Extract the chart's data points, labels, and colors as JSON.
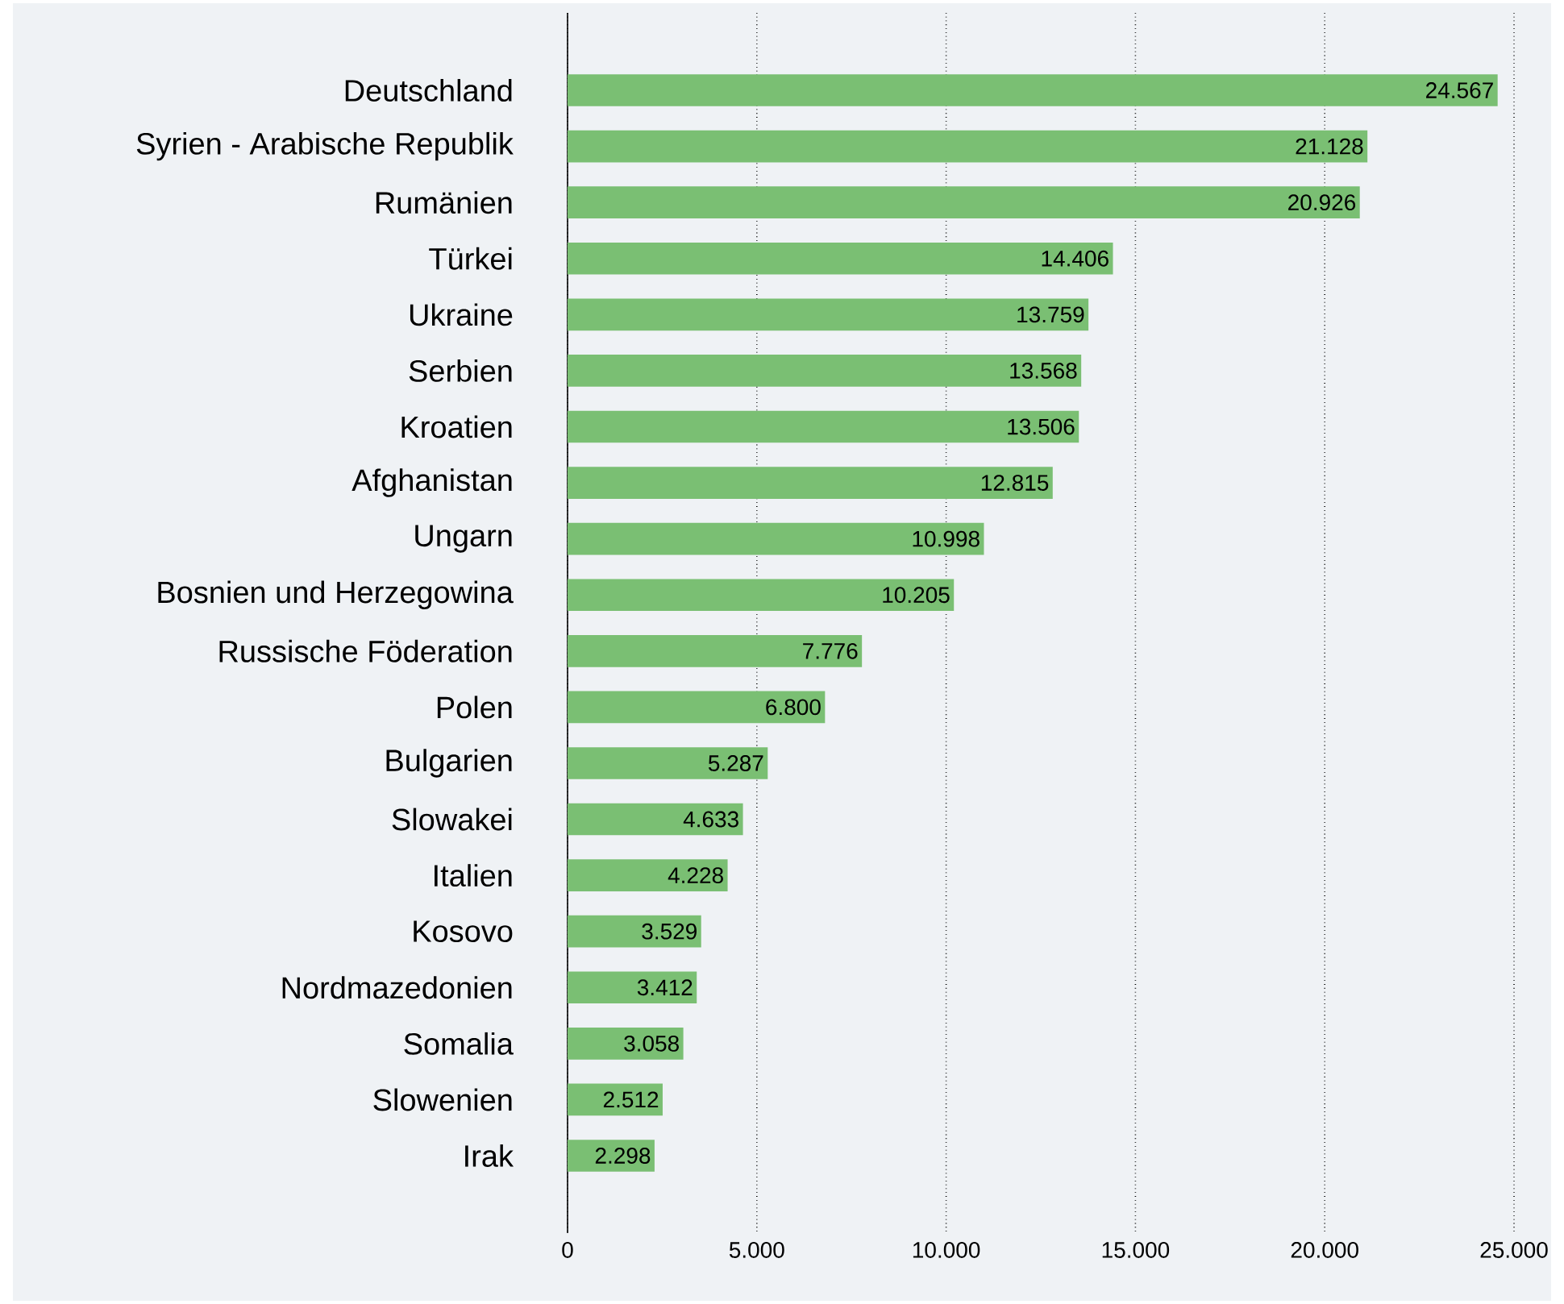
{
  "chart_data": {
    "type": "bar",
    "orientation": "horizontal",
    "categories": [
      "Deutschland",
      "Syrien - Arabische Republik",
      "Rumänien",
      "Türkei",
      "Ukraine",
      "Serbien",
      "Kroatien",
      "Afghanistan",
      "Ungarn",
      "Bosnien und Herzegowina",
      "Russische Föderation",
      "Polen",
      "Bulgarien",
      "Slowakei",
      "Italien",
      "Kosovo",
      "Nordmazedonien",
      "Somalia",
      "Slowenien",
      "Irak"
    ],
    "values": [
      24567,
      21128,
      20926,
      14406,
      13759,
      13568,
      13506,
      12815,
      10998,
      10205,
      7776,
      6800,
      5287,
      4633,
      4228,
      3529,
      3412,
      3058,
      2512,
      2298
    ],
    "value_labels": [
      "24.567",
      "21.128",
      "20.926",
      "14.406",
      "13.759",
      "13.568",
      "13.506",
      "12.815",
      "10.998",
      "10.205",
      "7.776",
      "6.800",
      "5.287",
      "4.633",
      "4.228",
      "3.529",
      "3.412",
      "3.058",
      "2.512",
      "2.298"
    ],
    "color": "#7abf73",
    "xlim": [
      0,
      25000
    ],
    "xticks": [
      0,
      {
        "value": 5000,
        "label": "5.000"
      },
      {
        "value": 10000,
        "label": "10.000"
      },
      {
        "value": 15000,
        "label": "15.000"
      },
      {
        "value": 20000,
        "label": "20.000"
      },
      {
        "value": 25000,
        "label": "25.000"
      }
    ],
    "grid": "x"
  }
}
